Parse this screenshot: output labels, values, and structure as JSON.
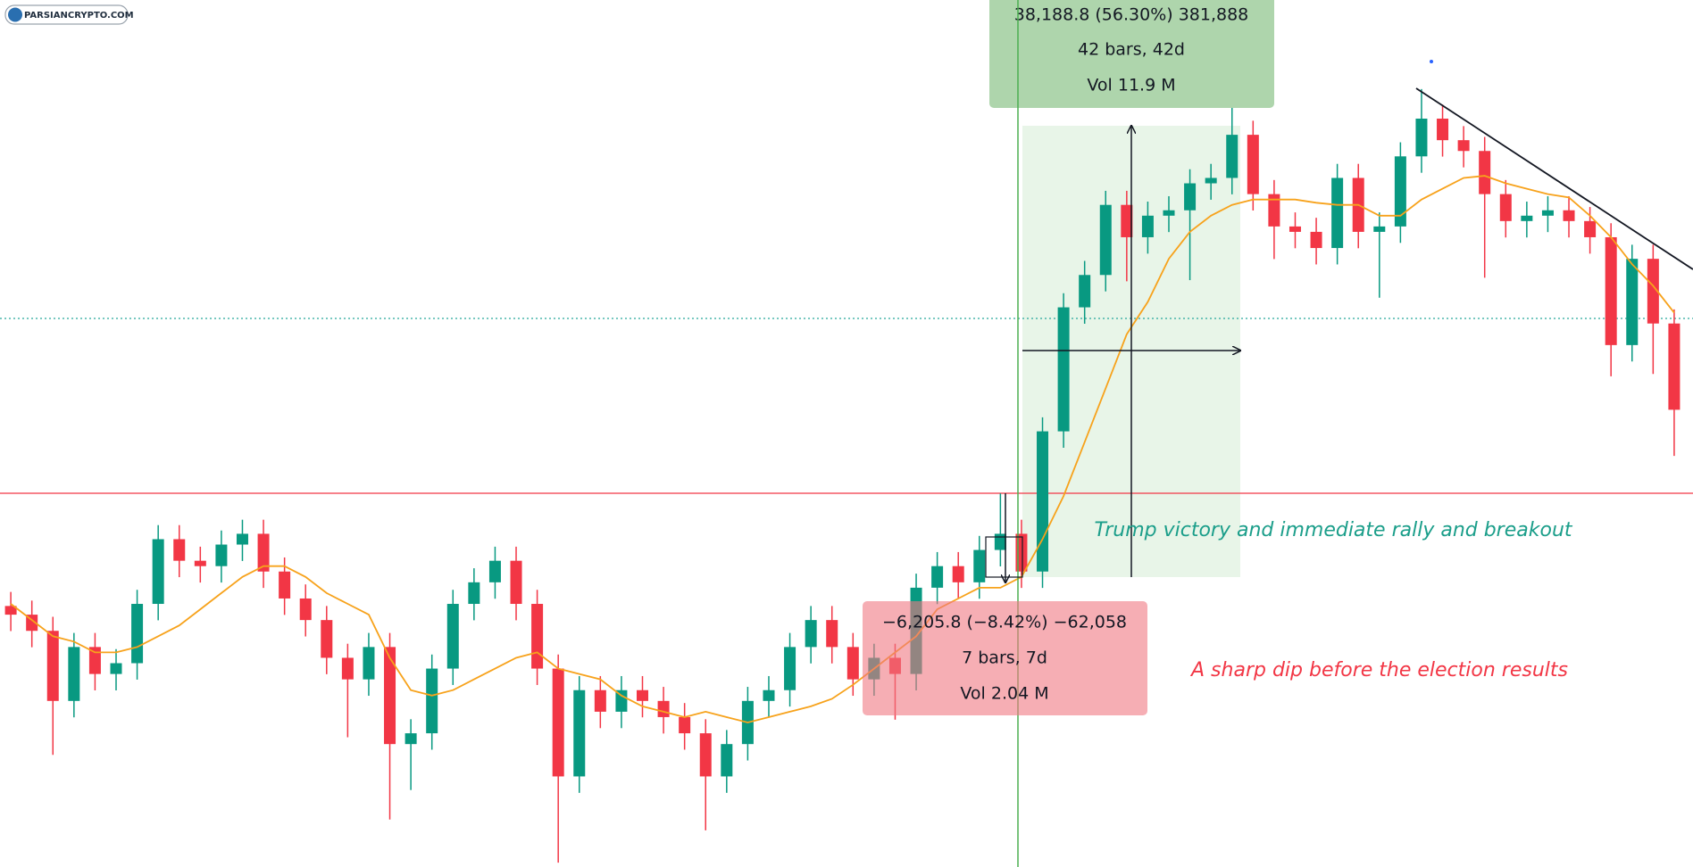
{
  "chart_data": {
    "type": "candlestick",
    "watermark": "PARSIANCRYPTO.COM",
    "ylim": [
      42932,
      116900
    ],
    "up_color": "#089981",
    "down_color": "#f23645",
    "ohlc": {
      "open": [
        65200,
        64460,
        63080,
        57100,
        61700,
        59400,
        60320,
        65380,
        70900,
        69060,
        68600,
        70440,
        71360,
        68140,
        65840,
        64000,
        60780,
        58940,
        61700,
        53420,
        54340,
        59860,
        65380,
        67220,
        69060,
        65380,
        59860,
        50660,
        58020,
        56180,
        58020,
        57100,
        55720,
        54340,
        50660,
        53420,
        57100,
        58020,
        61700,
        64000,
        61700,
        58940,
        60780,
        59400,
        66760,
        68600,
        67220,
        69980,
        71360,
        68140,
        80100,
        90680,
        93440,
        99420,
        96660,
        98500,
        98960,
        101260,
        101720,
        105400,
        100340,
        97580,
        97120,
        95740,
        101720,
        97120,
        97580,
        103560,
        106780,
        104940,
        104020,
        100340,
        98040,
        98500,
        98960,
        98040,
        96660,
        87460,
        94820,
        89300
      ],
      "high": [
        66400,
        65660,
        64280,
        62900,
        62900,
        61520,
        66580,
        72100,
        72100,
        70260,
        71640,
        72560,
        72560,
        69340,
        67040,
        65200,
        61980,
        62900,
        62900,
        55540,
        61060,
        66580,
        68420,
        70260,
        70260,
        66580,
        61060,
        59220,
        59220,
        59220,
        59220,
        58300,
        56920,
        55540,
        54620,
        58300,
        59220,
        62900,
        65200,
        65200,
        62900,
        61980,
        61980,
        67960,
        69800,
        69800,
        71180,
        74800,
        72560,
        81300,
        91880,
        94640,
        100620,
        100620,
        99700,
        100160,
        102460,
        102920,
        107980,
        106600,
        101540,
        98780,
        98320,
        102920,
        102920,
        98780,
        104760,
        109300,
        107980,
        106140,
        105220,
        101540,
        99700,
        100160,
        100160,
        99240,
        97860,
        96020,
        96020,
        90500
      ],
      "low": [
        63060,
        61680,
        52500,
        55700,
        58000,
        58000,
        58920,
        63980,
        67660,
        67200,
        67200,
        69040,
        66740,
        64440,
        62600,
        59380,
        54000,
        57540,
        46980,
        49500,
        52940,
        58460,
        63980,
        65820,
        63980,
        58460,
        43300,
        49260,
        54780,
        54780,
        55700,
        54320,
        52940,
        46060,
        49260,
        52020,
        55700,
        56620,
        60300,
        60300,
        57540,
        57540,
        55500,
        58000,
        65360,
        65820,
        65820,
        68580,
        66740,
        66740,
        78700,
        89280,
        92040,
        92900,
        95260,
        97100,
        93000,
        99860,
        100320,
        98940,
        94800,
        95720,
        94340,
        94340,
        95720,
        91500,
        96180,
        102160,
        103540,
        102620,
        93200,
        96640,
        96640,
        97100,
        96640,
        95260,
        84800,
        86060,
        85000,
        78000
      ],
      "close": [
        64460,
        63080,
        57100,
        61700,
        59400,
        60320,
        65380,
        70900,
        69060,
        68600,
        70440,
        71360,
        68140,
        65840,
        64000,
        60780,
        58940,
        61700,
        53420,
        54340,
        59860,
        65380,
        67220,
        69060,
        65380,
        59860,
        50660,
        58020,
        56180,
        58020,
        57100,
        55720,
        54340,
        50660,
        53420,
        57100,
        58020,
        61700,
        64000,
        61700,
        58940,
        60780,
        59400,
        66760,
        68600,
        67220,
        69980,
        71360,
        68140,
        80100,
        90680,
        93440,
        99420,
        96660,
        98500,
        98960,
        101260,
        101720,
        105400,
        100340,
        97580,
        97120,
        95740,
        101720,
        97120,
        97580,
        103560,
        106780,
        104940,
        104020,
        100340,
        98040,
        98500,
        98960,
        98040,
        96660,
        87460,
        94820,
        89300,
        81940
      ]
    },
    "ma": {
      "color": "#f7a21b",
      "values": [
        65380,
        64000,
        62620,
        62160,
        61240,
        61240,
        61700,
        62620,
        63540,
        64920,
        66300,
        67680,
        68600,
        68600,
        67680,
        66300,
        65380,
        64460,
        60780,
        58020,
        57560,
        58020,
        58940,
        59860,
        60780,
        61240,
        59860,
        59400,
        58940,
        57560,
        56640,
        56180,
        55720,
        56180,
        55720,
        55260,
        55720,
        56180,
        56640,
        57280,
        58480,
        59860,
        61240,
        62620,
        64920,
        65840,
        66760,
        66760,
        67680,
        70900,
        74580,
        79180,
        83780,
        88380,
        91140,
        94820,
        97120,
        98500,
        99420,
        99880,
        99880,
        99880,
        99600,
        99420,
        99420,
        98500,
        98500,
        99880,
        100800,
        101720,
        101900,
        101260,
        100800,
        100340,
        100060,
        98500,
        96660,
        94360,
        92520,
        90220
      ]
    },
    "measures": [
      {
        "lines": [
          "38,188.8 (56.30%) 381,888",
          "42 bars, 42d",
          "Vol 11.9 M"
        ]
      },
      {
        "lines": [
          "−6,205.8 (−8.42%) −62,058",
          "7 bars, 7d",
          "Vol 2.04 M"
        ]
      }
    ],
    "annotations": [
      {
        "text": "Trump victory and immediate rally and breakout",
        "color": "#1b9e8a"
      },
      {
        "text": "A sharp dip before the election results",
        "color": "#f23645"
      }
    ]
  }
}
